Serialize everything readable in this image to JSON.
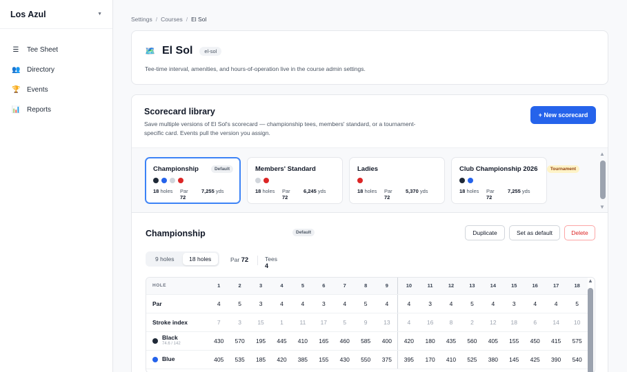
{
  "sidebar": {
    "brand": "Los Azul",
    "items": [
      {
        "icon": "tee-sheet-icon",
        "glyph": "☰",
        "label": "Tee Sheet"
      },
      {
        "icon": "directory-icon",
        "glyph": "👥",
        "label": "Directory"
      },
      {
        "icon": "events-icon",
        "glyph": "🏆",
        "label": "Events"
      },
      {
        "icon": "reports-icon",
        "glyph": "📊",
        "label": "Reports"
      }
    ]
  },
  "breadcrumb": [
    "Settings",
    "Courses",
    "El Sol"
  ],
  "course": {
    "name": "El Sol",
    "slug": "el-sol",
    "description": "Tee-time interval, amenities, and hours-of-operation live in the course admin settings."
  },
  "library": {
    "title": "Scorecard library",
    "subtitle": "Save multiple versions of El Sol's scorecard — championship tees, members' standard, or a tournament-specific card. Events pull the version you assign.",
    "new_button": "+  New scorecard",
    "cards": [
      {
        "name": "Championship",
        "badge": "Default",
        "dots": [
          "#1f2937",
          "#2563eb",
          "#d1d5db",
          "#dc2626"
        ],
        "holes": "18",
        "holes_label": "holes",
        "par_label": "Par",
        "par": "72",
        "yds": "7,255",
        "yds_label": "yds"
      },
      {
        "name": "Members' Standard",
        "badge": "",
        "dots": [
          "#d1d5db",
          "#dc2626"
        ],
        "holes": "18",
        "holes_label": "holes",
        "par_label": "Par",
        "par": "72",
        "yds": "6,245",
        "yds_label": "yds"
      },
      {
        "name": "Ladies",
        "badge": "",
        "dots": [
          "#dc2626"
        ],
        "holes": "18",
        "holes_label": "holes",
        "par_label": "Par",
        "par": "72",
        "yds": "5,370",
        "yds_label": "yds"
      },
      {
        "name": "Club Championship 2026",
        "badge": "Tournament",
        "dots": [
          "#1f2937",
          "#2563eb"
        ],
        "holes": "18",
        "holes_label": "holes",
        "par_label": "Par",
        "par": "72",
        "yds": "7,255",
        "yds_label": "yds"
      }
    ]
  },
  "detail": {
    "title": "Championship",
    "badge": "Default",
    "duplicate": "Duplicate",
    "set_default": "Set as default",
    "delete": "Delete",
    "seg_9": "9 holes",
    "seg_18": "18 holes",
    "par_label": "Par",
    "par_value": "72",
    "tees_label": "Tees",
    "tees_value": "4"
  },
  "table": {
    "hole_label": "HOLE",
    "holes": [
      "1",
      "2",
      "3",
      "4",
      "5",
      "6",
      "7",
      "8",
      "9",
      "10",
      "11",
      "12",
      "13",
      "14",
      "15",
      "16",
      "17",
      "18"
    ],
    "par_label": "Par",
    "par": [
      "4",
      "5",
      "3",
      "4",
      "4",
      "3",
      "4",
      "5",
      "4",
      "4",
      "3",
      "4",
      "5",
      "4",
      "3",
      "4",
      "4",
      "5"
    ],
    "si_label": "Stroke index",
    "stroke_index": [
      "7",
      "3",
      "15",
      "1",
      "11",
      "17",
      "5",
      "9",
      "13",
      "4",
      "16",
      "8",
      "2",
      "12",
      "18",
      "6",
      "14",
      "10"
    ],
    "tees": [
      {
        "name": "Black",
        "rating": "74.6 / 142",
        "color": "#1f2937",
        "yards": [
          "430",
          "570",
          "195",
          "445",
          "410",
          "165",
          "460",
          "585",
          "400",
          "420",
          "180",
          "435",
          "560",
          "405",
          "155",
          "450",
          "415",
          "575"
        ]
      },
      {
        "name": "Blue",
        "rating": "",
        "color": "#2563eb",
        "yards": [
          "405",
          "535",
          "185",
          "420",
          "385",
          "155",
          "430",
          "550",
          "375",
          "395",
          "170",
          "410",
          "525",
          "380",
          "145",
          "425",
          "390",
          "540"
        ]
      }
    ]
  }
}
